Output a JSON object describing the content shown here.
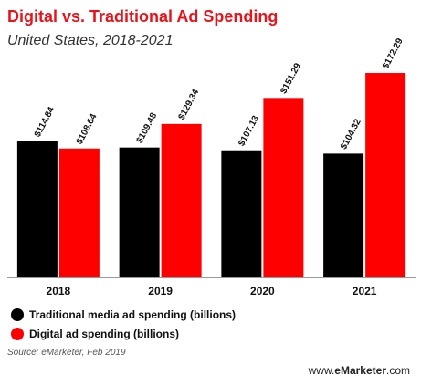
{
  "chart_data": {
    "type": "bar",
    "title": "Digital vs. Traditional Ad Spending",
    "subtitle": "United States, 2018-2021",
    "categories": [
      "2018",
      "2019",
      "2020",
      "2021"
    ],
    "series": [
      {
        "name": "Traditional media ad spending (billions)",
        "color": "#000000",
        "values": [
          114.84,
          109.48,
          107.13,
          104.32
        ],
        "labels": [
          "$114.84",
          "$109.48",
          "$107.13",
          "$104.32"
        ]
      },
      {
        "name": "Digital ad spending (billions)",
        "color": "#ff0000",
        "values": [
          108.64,
          129.34,
          151.29,
          172.29
        ],
        "labels": [
          "$108.64",
          "$129.34",
          "$151.29",
          "$172.29"
        ]
      }
    ],
    "ylim": [
      0,
      180
    ],
    "xlabel": "",
    "ylabel": "",
    "grid": false,
    "legend_position": "bottom-left"
  },
  "footer": {
    "source": "Source: eMarketer, Feb 2019",
    "brand_prefix": "www.",
    "brand_name": "eMarketer",
    "brand_suffix": ".com"
  }
}
